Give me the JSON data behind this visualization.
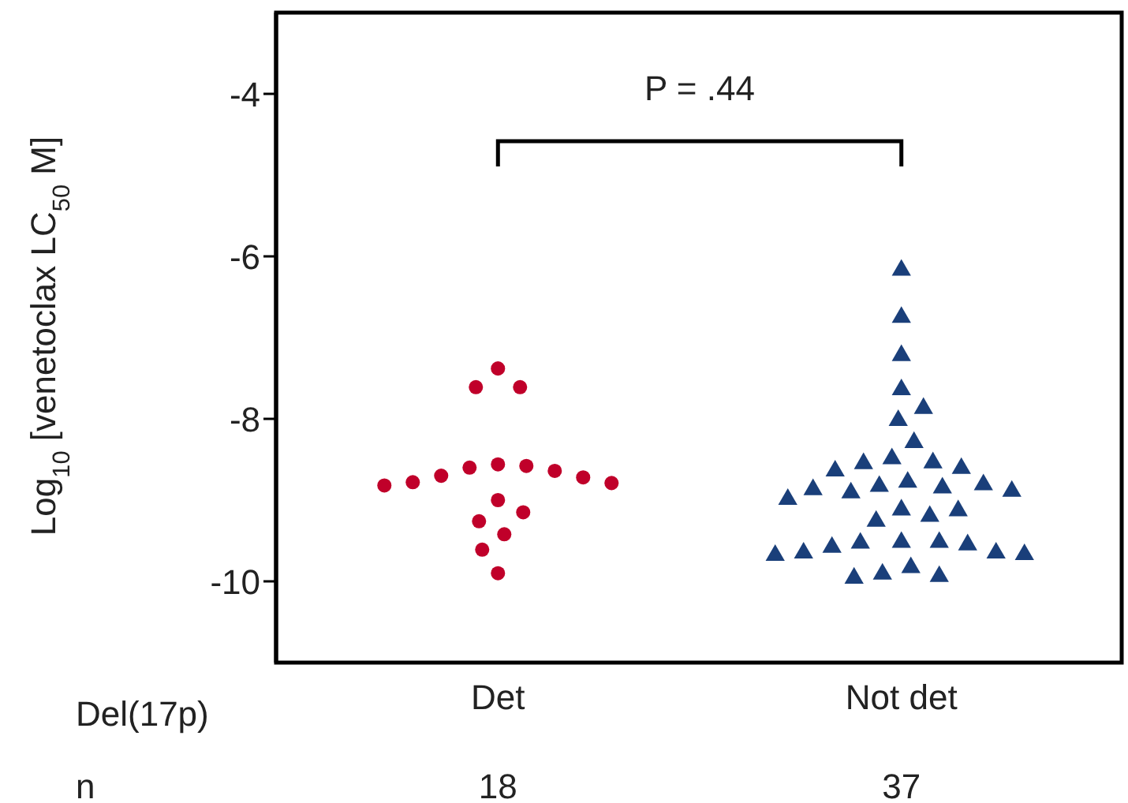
{
  "chart_data": {
    "type": "scatter",
    "ylabel": "Log$_{10}$ [venetoclax LC$_{50}$ M]",
    "categories": [
      "Det",
      "Not det"
    ],
    "ylim": [
      -11,
      -3
    ],
    "yticks": [
      -4,
      -6,
      -8,
      -10
    ],
    "series": [
      {
        "color": "#c0002a",
        "marker": "circle",
        "x": [
          "Det",
          "Det",
          "Det",
          "Det",
          "Det",
          "Det",
          "Det",
          "Det",
          "Det",
          "Det",
          "Det",
          "Det",
          "Det",
          "Det",
          "Det",
          "Det",
          "Det",
          "Det"
        ],
        "values": [
          -7.61,
          -7.61,
          -7.38,
          -8.56,
          -8.6,
          -8.7,
          -8.78,
          -8.82,
          -8.79,
          -8.72,
          -8.64,
          -8.58,
          -9.0,
          -9.26,
          -9.15,
          -9.42,
          -9.61,
          -9.9
        ]
      },
      {
        "color": "#1a3f7a",
        "marker": "triangle",
        "x": [
          "Not det",
          "Not det",
          "Not det",
          "Not det",
          "Not det",
          "Not det",
          "Not det",
          "Not det",
          "Not det",
          "Not det",
          "Not det",
          "Not det",
          "Not det",
          "Not det",
          "Not det",
          "Not det",
          "Not det",
          "Not det",
          "Not det",
          "Not det",
          "Not det",
          "Not det",
          "Not det",
          "Not det",
          "Not det",
          "Not det",
          "Not det",
          "Not det",
          "Not det",
          "Not det",
          "Not det",
          "Not det",
          "Not det",
          "Not det",
          "Not det",
          "Not det",
          "Not det"
        ],
        "values": [
          -6.17,
          -6.75,
          -7.22,
          -7.64,
          -7.87,
          -8.02,
          -8.29,
          -8.54,
          -8.49,
          -8.64,
          -8.61,
          -8.55,
          -8.87,
          -8.89,
          -8.91,
          -8.78,
          -8.85,
          -8.83,
          -8.81,
          -8.99,
          -9.12,
          -9.2,
          -9.26,
          -9.13,
          -9.52,
          -9.53,
          -9.58,
          -9.65,
          -9.67,
          -9.91,
          -9.96,
          -9.94,
          -9.83,
          -9.68,
          -9.65,
          -9.55,
          -9.52
        ]
      }
    ],
    "annotations": [
      "P = .44",
      "Del(17p)",
      "n",
      "18",
      "37"
    ]
  }
}
